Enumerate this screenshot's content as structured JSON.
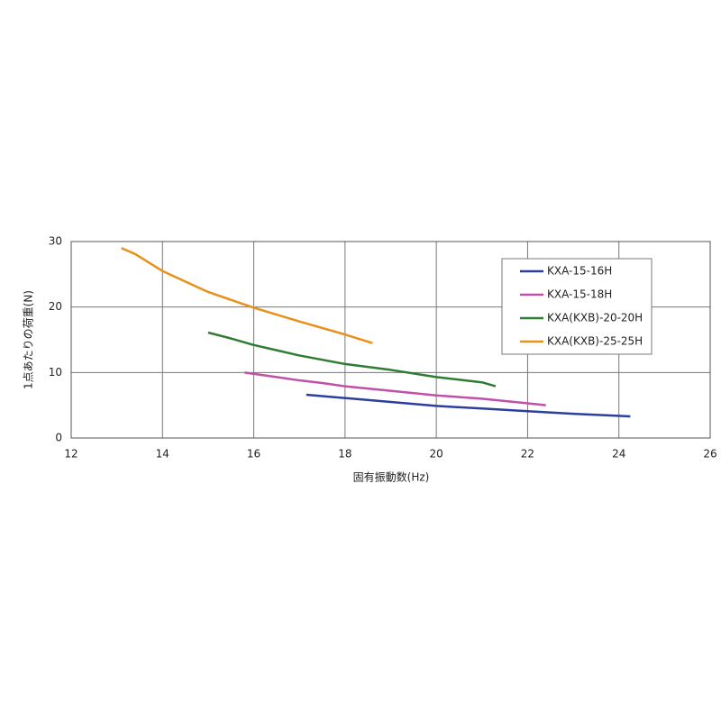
{
  "chart_data": {
    "type": "line",
    "x_label": "固有振動数(Hz)",
    "y_label": "1点あたりの荷重(N)",
    "xlim": [
      12,
      26
    ],
    "xticks": [
      12,
      14,
      16,
      18,
      20,
      22,
      24,
      26
    ],
    "ylim": [
      0,
      30
    ],
    "yticks": [
      0,
      10,
      20,
      30
    ],
    "grid": true,
    "legend": "upper right",
    "series": [
      {
        "name": "KXA-15-16H",
        "color": "#2b3f9e",
        "x": [
          17.15,
          18,
          19,
          20,
          21,
          22,
          23,
          24.25
        ],
        "values": [
          6.6,
          6.1,
          5.5,
          4.9,
          4.5,
          4.1,
          3.7,
          3.3
        ]
      },
      {
        "name": "KXA-15-18H",
        "color": "#c050a8",
        "x": [
          15.8,
          16.5,
          17,
          17.5,
          18,
          19,
          20,
          21,
          22,
          22.4
        ],
        "values": [
          10.0,
          9.3,
          8.8,
          8.4,
          7.9,
          7.2,
          6.5,
          6.0,
          5.3,
          5.0
        ]
      },
      {
        "name": "KXA(KXB)-20-20H",
        "color": "#2e7d32",
        "x": [
          15,
          15.5,
          16,
          16.5,
          17,
          18,
          19,
          20,
          21,
          21.3
        ],
        "values": [
          16.1,
          15.2,
          14.2,
          13.4,
          12.6,
          11.3,
          10.4,
          9.3,
          8.5,
          7.9
        ]
      },
      {
        "name": "KXA(KXB)-25-25H",
        "color": "#e8901a",
        "x": [
          13.1,
          13.4,
          14,
          15,
          16,
          17,
          18,
          18.6
        ],
        "values": [
          29,
          28.1,
          25.5,
          22.3,
          19.9,
          17.8,
          15.8,
          14.5
        ]
      }
    ]
  }
}
